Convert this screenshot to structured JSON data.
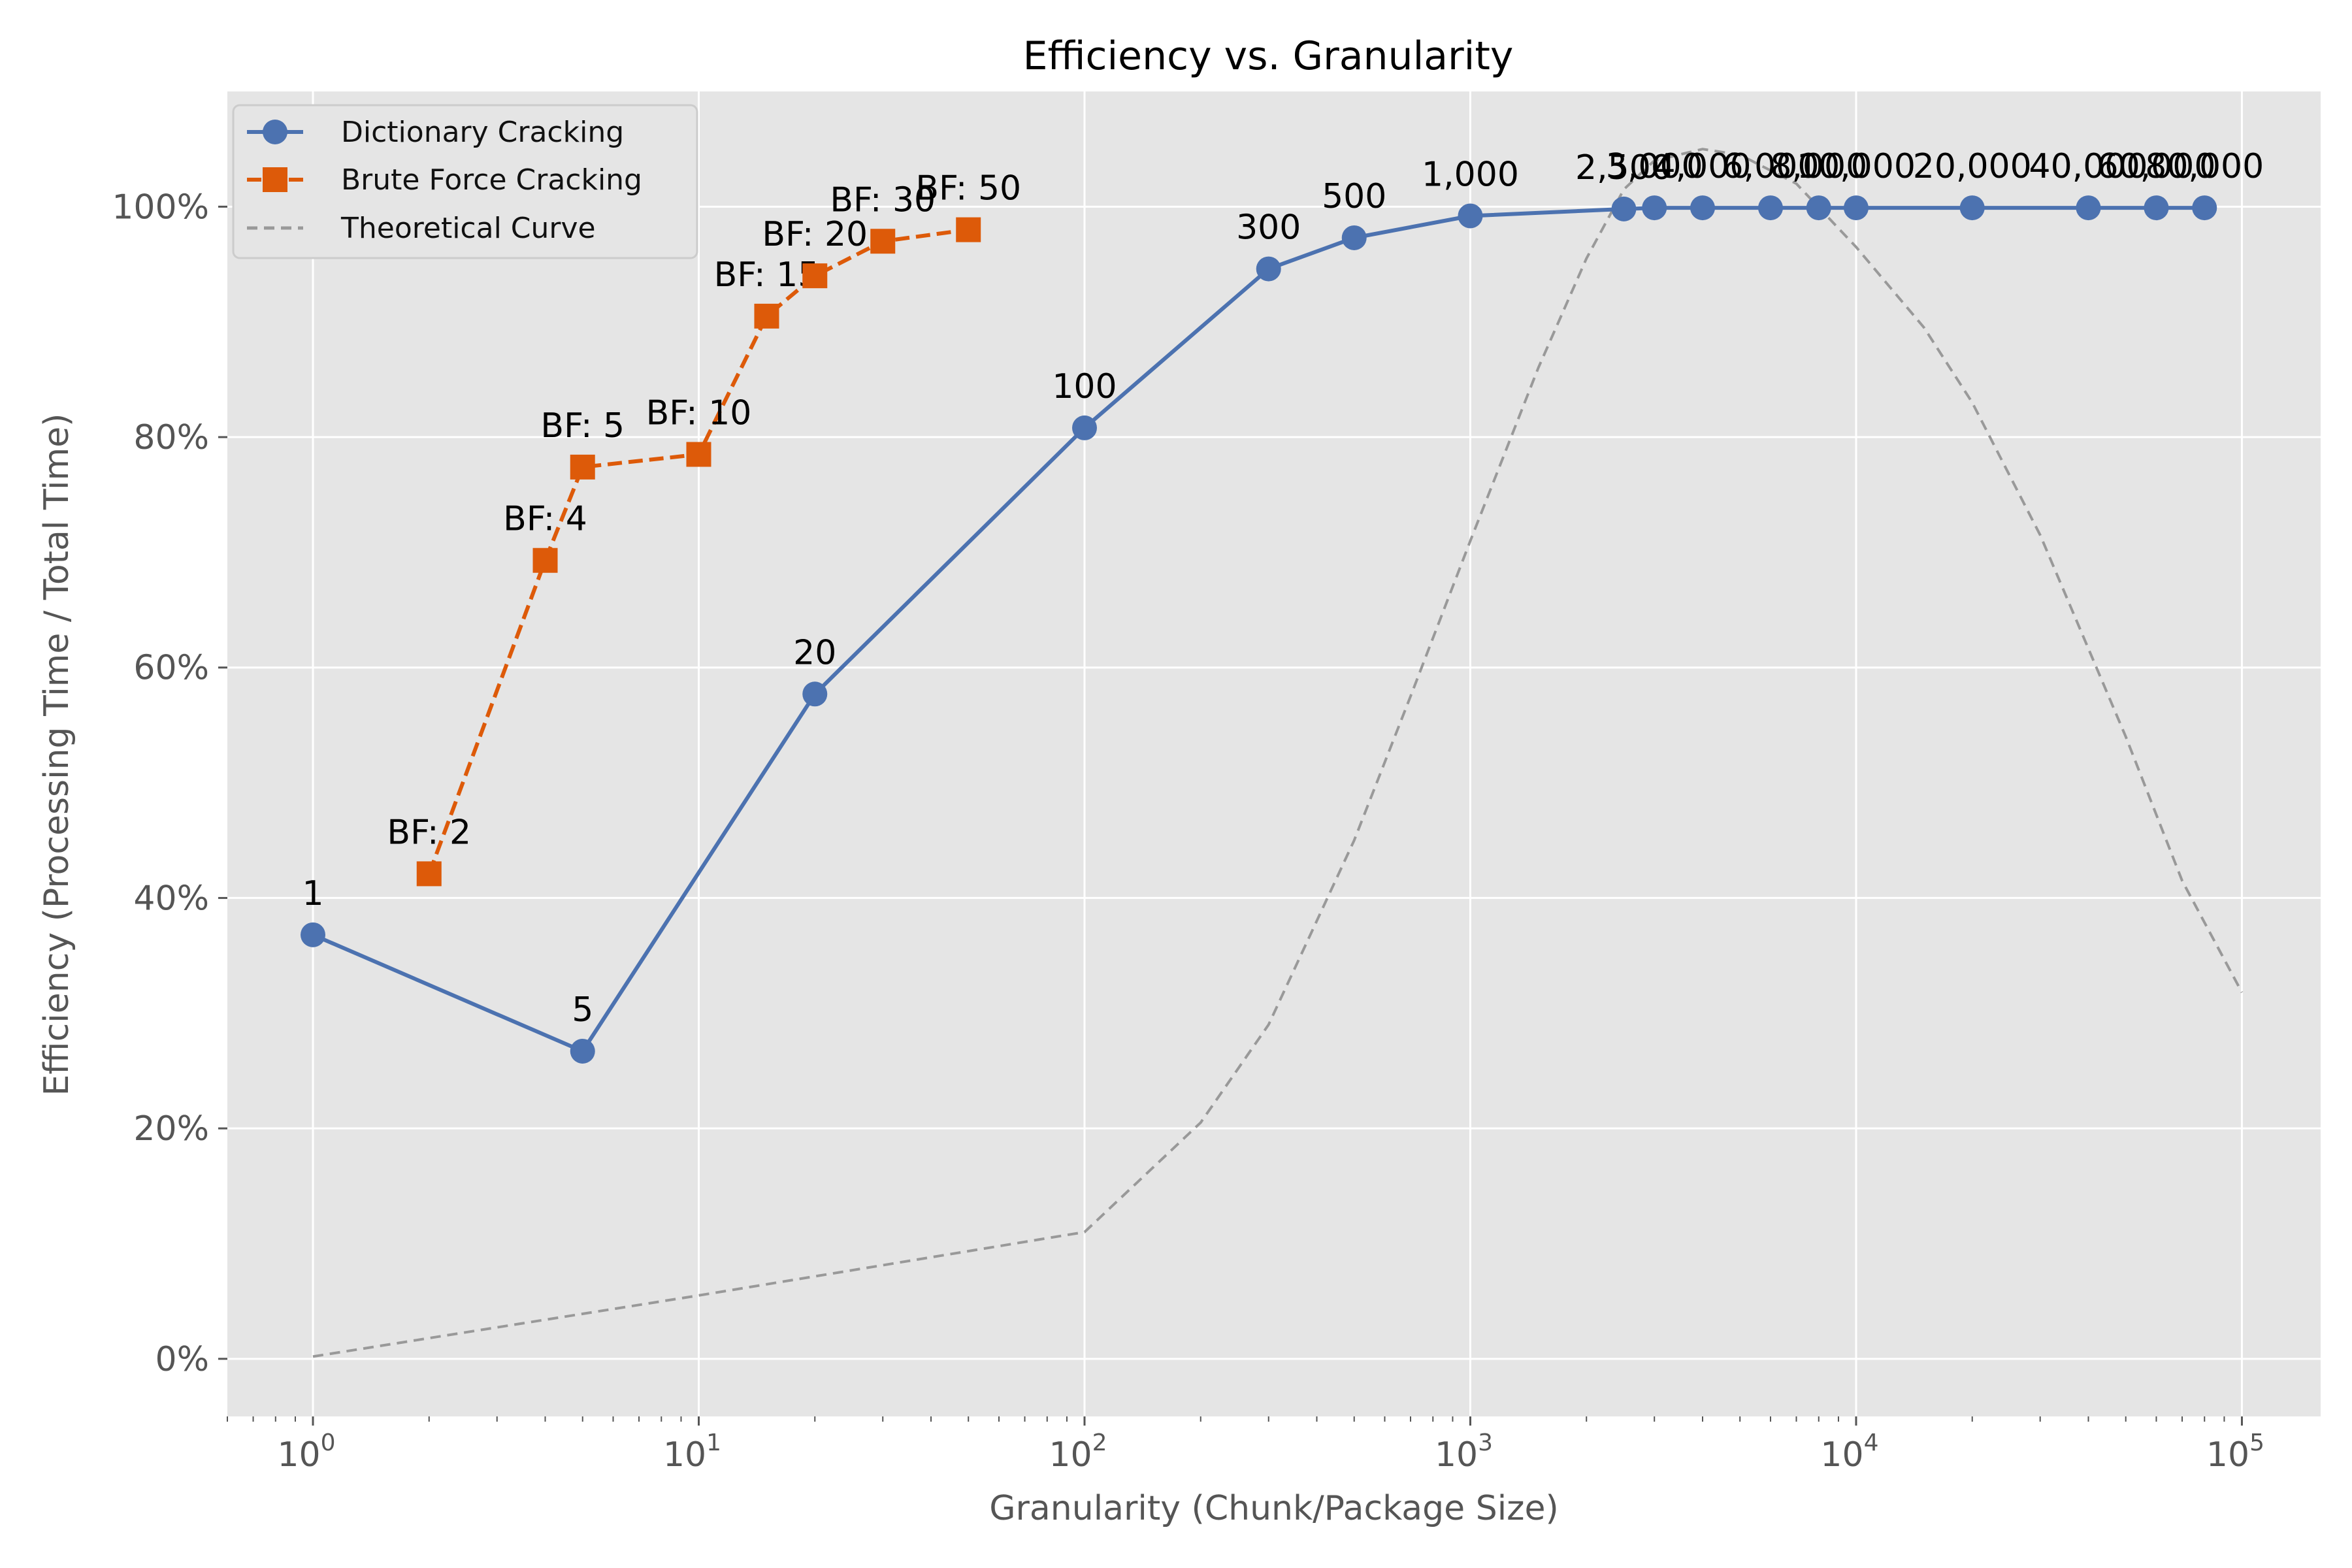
{
  "colors": {
    "panel": "#e5e5e5",
    "grid": "#ffffff",
    "dictionary": "#4c72b0",
    "brute_force": "#dd5a09",
    "theoretical": "#999999",
    "tick": "#555555"
  },
  "chart_data": {
    "type": "line",
    "title": "Efficiency vs. Granularity",
    "xlabel": "Granularity (Chunk/Package Size)",
    "ylabel": "Efficiency (Processing Time / Total Time)",
    "xscale": "log",
    "xlim": [
      0.6,
      160000
    ],
    "ylim": [
      -0.05,
      1.1
    ],
    "grid": true,
    "legend_position": "top-left",
    "xticks": [
      {
        "value": 1,
        "base": "10",
        "exp": "0"
      },
      {
        "value": 10,
        "base": "10",
        "exp": "1"
      },
      {
        "value": 100,
        "base": "10",
        "exp": "2"
      },
      {
        "value": 1000,
        "base": "10",
        "exp": "3"
      },
      {
        "value": 10000,
        "base": "10",
        "exp": "4"
      },
      {
        "value": 100000,
        "base": "10",
        "exp": "5"
      }
    ],
    "yticks": [
      {
        "value": 0.0,
        "label": "0%"
      },
      {
        "value": 0.2,
        "label": "20%"
      },
      {
        "value": 0.4,
        "label": "40%"
      },
      {
        "value": 0.6,
        "label": "60%"
      },
      {
        "value": 0.8,
        "label": "80%"
      },
      {
        "value": 1.0,
        "label": "100%"
      }
    ],
    "series": [
      {
        "name": "Dictionary Cracking",
        "style": "solid",
        "marker": "circle",
        "points": [
          {
            "x": 1,
            "y": 0.368,
            "label": "1"
          },
          {
            "x": 5,
            "y": 0.267,
            "label": "5"
          },
          {
            "x": 20,
            "y": 0.577,
            "label": "20"
          },
          {
            "x": 100,
            "y": 0.808,
            "label": "100"
          },
          {
            "x": 300,
            "y": 0.946,
            "label": "300"
          },
          {
            "x": 500,
            "y": 0.973,
            "label": "500"
          },
          {
            "x": 1000,
            "y": 0.992,
            "label": "1,000"
          },
          {
            "x": 2500,
            "y": 0.998,
            "label": "2,500"
          },
          {
            "x": 3000,
            "y": 0.999,
            "label": "3,000"
          },
          {
            "x": 4000,
            "y": 0.999,
            "label": "4,000"
          },
          {
            "x": 6000,
            "y": 0.999,
            "label": "6,000"
          },
          {
            "x": 8000,
            "y": 0.999,
            "label": "8,000"
          },
          {
            "x": 10000,
            "y": 0.999,
            "label": "10,000"
          },
          {
            "x": 20000,
            "y": 0.999,
            "label": "20,000"
          },
          {
            "x": 40000,
            "y": 0.999,
            "label": "40,000"
          },
          {
            "x": 60000,
            "y": 0.999,
            "label": "60,000"
          },
          {
            "x": 80000,
            "y": 0.999,
            "label": "80,000"
          }
        ]
      },
      {
        "name": "Brute Force Cracking",
        "style": "dashed",
        "marker": "square",
        "points": [
          {
            "x": 2,
            "y": 0.421,
            "label": "BF: 2"
          },
          {
            "x": 4,
            "y": 0.693,
            "label": "BF: 4"
          },
          {
            "x": 5,
            "y": 0.774,
            "label": "BF: 5"
          },
          {
            "x": 10,
            "y": 0.785,
            "label": "BF: 10"
          },
          {
            "x": 15,
            "y": 0.905,
            "label": "BF: 15"
          },
          {
            "x": 20,
            "y": 0.94,
            "label": "BF: 20"
          },
          {
            "x": 30,
            "y": 0.97,
            "label": "BF: 30"
          },
          {
            "x": 50,
            "y": 0.98,
            "label": "BF: 50"
          }
        ]
      },
      {
        "name": "Theoretical Curve",
        "style": "dashed",
        "marker": "none",
        "points": [
          {
            "x": 1,
            "y": 0.002
          },
          {
            "x": 10,
            "y": 0.055
          },
          {
            "x": 100,
            "y": 0.11
          },
          {
            "x": 200,
            "y": 0.205
          },
          {
            "x": 300,
            "y": 0.29
          },
          {
            "x": 500,
            "y": 0.45
          },
          {
            "x": 700,
            "y": 0.575
          },
          {
            "x": 1000,
            "y": 0.71
          },
          {
            "x": 1500,
            "y": 0.86
          },
          {
            "x": 2000,
            "y": 0.955
          },
          {
            "x": 2500,
            "y": 1.015
          },
          {
            "x": 3000,
            "y": 1.04
          },
          {
            "x": 4000,
            "y": 1.05
          },
          {
            "x": 5000,
            "y": 1.045
          },
          {
            "x": 7000,
            "y": 1.02
          },
          {
            "x": 10000,
            "y": 0.965
          },
          {
            "x": 15000,
            "y": 0.895
          },
          {
            "x": 20000,
            "y": 0.83
          },
          {
            "x": 30000,
            "y": 0.715
          },
          {
            "x": 50000,
            "y": 0.54
          },
          {
            "x": 70000,
            "y": 0.415
          },
          {
            "x": 100000,
            "y": 0.318
          }
        ]
      }
    ]
  }
}
